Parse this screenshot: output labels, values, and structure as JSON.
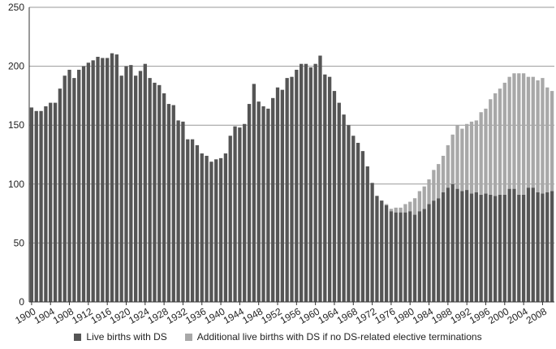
{
  "chart_data": {
    "type": "stacked_bar",
    "categories": [
      "1900",
      null,
      null,
      null,
      "1904",
      null,
      null,
      null,
      "1908",
      null,
      null,
      null,
      "1912",
      null,
      null,
      null,
      "1916",
      null,
      null,
      null,
      "1920",
      null,
      null,
      null,
      "1924",
      null,
      null,
      null,
      "1928",
      null,
      null,
      null,
      "1932",
      null,
      null,
      null,
      "1936",
      null,
      null,
      null,
      "1940",
      null,
      null,
      null,
      "1944",
      null,
      null,
      null,
      "1948",
      null,
      null,
      null,
      "1952",
      null,
      null,
      null,
      "1956",
      null,
      null,
      null,
      "1960",
      null,
      null,
      null,
      "1964",
      null,
      null,
      null,
      "1968",
      null,
      null,
      null,
      "1972",
      null,
      null,
      null,
      "1976",
      null,
      null,
      null,
      "1980",
      null,
      null,
      null,
      "1984",
      null,
      null,
      null,
      "1988",
      null,
      null,
      null,
      "1992",
      null,
      null,
      null,
      "1996",
      null,
      null,
      null,
      "2000",
      null,
      null,
      null,
      "2004",
      null,
      null,
      null,
      "2008",
      null,
      null
    ],
    "series": [
      {
        "name": "Live births with DS",
        "color": "#555555",
        "values": [
          165,
          162,
          162,
          166,
          169,
          169,
          181,
          192,
          197,
          190,
          197,
          200,
          203,
          205,
          208,
          207,
          207,
          211,
          210,
          192,
          200,
          201,
          192,
          196,
          202,
          190,
          186,
          184,
          177,
          168,
          167,
          154,
          153,
          138,
          138,
          133,
          126,
          124,
          119,
          121,
          122,
          126,
          141,
          149,
          148,
          151,
          168,
          185,
          170,
          166,
          164,
          173,
          182,
          180,
          190,
          191,
          197,
          202,
          202,
          199,
          202,
          209,
          193,
          191,
          179,
          169,
          159,
          150,
          141,
          135,
          128,
          115,
          101,
          90,
          86,
          82,
          77,
          76,
          76,
          76,
          77,
          74,
          77,
          79,
          83,
          86,
          88,
          93,
          97,
          100,
          96,
          94,
          95,
          92,
          93,
          91,
          92,
          91,
          90,
          91,
          91,
          96,
          96,
          91,
          91,
          97,
          97,
          93,
          92,
          93,
          94
        ]
      },
      {
        "name": "Additional live births with DS if no DS-related elective terminations",
        "color": "#a8a8a8",
        "values": [
          0,
          0,
          0,
          0,
          0,
          0,
          0,
          0,
          0,
          0,
          0,
          0,
          0,
          0,
          0,
          0,
          0,
          0,
          0,
          0,
          0,
          0,
          0,
          0,
          0,
          0,
          0,
          0,
          0,
          0,
          0,
          0,
          0,
          0,
          0,
          0,
          0,
          0,
          0,
          0,
          0,
          0,
          0,
          0,
          0,
          0,
          0,
          0,
          0,
          0,
          0,
          0,
          0,
          0,
          0,
          0,
          0,
          0,
          0,
          0,
          0,
          0,
          0,
          0,
          0,
          0,
          0,
          0,
          0,
          0,
          0,
          0,
          0,
          0,
          0,
          1,
          2,
          4,
          4,
          7,
          8,
          14,
          17,
          19,
          21,
          26,
          29,
          31,
          36,
          42,
          54,
          53,
          56,
          61,
          61,
          70,
          72,
          81,
          87,
          90,
          95,
          95,
          98,
          103,
          103,
          94,
          94,
          95,
          98,
          89,
          85
        ]
      }
    ],
    "ylim": [
      0,
      250
    ],
    "yticks": [
      0,
      50,
      100,
      150,
      200,
      250
    ],
    "grid": true,
    "legend": "bottom"
  }
}
